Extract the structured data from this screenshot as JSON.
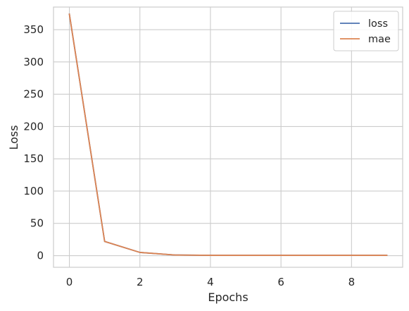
{
  "chart_data": {
    "type": "line",
    "xlabel": "Epochs",
    "ylabel": "Loss",
    "xlim": [
      -0.45,
      9.45
    ],
    "ylim": [
      -18,
      385
    ],
    "xticks": [
      0,
      2,
      4,
      6,
      8
    ],
    "yticks": [
      0,
      50,
      100,
      150,
      200,
      250,
      300,
      350
    ],
    "grid": true,
    "legend_position": "top-right",
    "x": [
      0,
      1,
      2,
      3,
      4,
      5,
      6,
      7,
      8,
      9
    ],
    "series": [
      {
        "name": "loss",
        "color": "#4c72b0",
        "values": [
          374,
          22,
          5,
          1,
          0.5,
          0.5,
          0.5,
          0.5,
          0.5,
          0.5
        ]
      },
      {
        "name": "mae",
        "color": "#dd8452",
        "values": [
          374,
          22,
          5,
          1,
          0.5,
          0.5,
          0.5,
          0.5,
          0.5,
          0.5
        ]
      }
    ]
  }
}
